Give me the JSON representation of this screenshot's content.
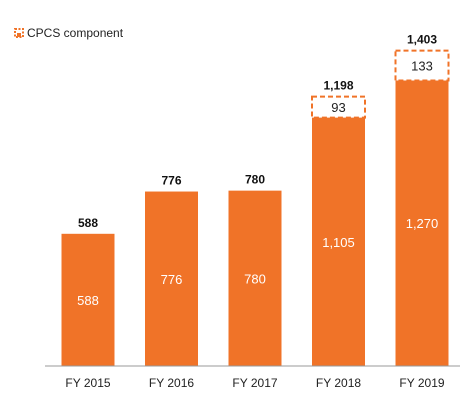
{
  "chart_data": {
    "type": "bar",
    "stacked": true,
    "categories": [
      "FY 2015",
      "FY 2016",
      "FY 2017",
      "FY 2018",
      "FY 2019"
    ],
    "series": [
      {
        "values": [
          588,
          776,
          780,
          1105,
          1270
        ],
        "color": "#f07328"
      },
      {
        "name": "CPCS component",
        "values": [
          0,
          0,
          0,
          93,
          133
        ],
        "color": "#f07328",
        "style": "dashed-outline"
      }
    ],
    "total_labels": [
      "588",
      "776",
      "780",
      "1,198",
      "1,403"
    ],
    "base_labels": [
      "588",
      "776",
      "780",
      "1,105",
      "1,270"
    ],
    "cpcs_labels": [
      "",
      "",
      "",
      "93",
      "133"
    ],
    "legend": {
      "placement": "top-left",
      "label": "CPCS component"
    },
    "ylim": [
      0,
      1450
    ],
    "grid": false,
    "title": "",
    "xlabel": "",
    "ylabel": ""
  }
}
